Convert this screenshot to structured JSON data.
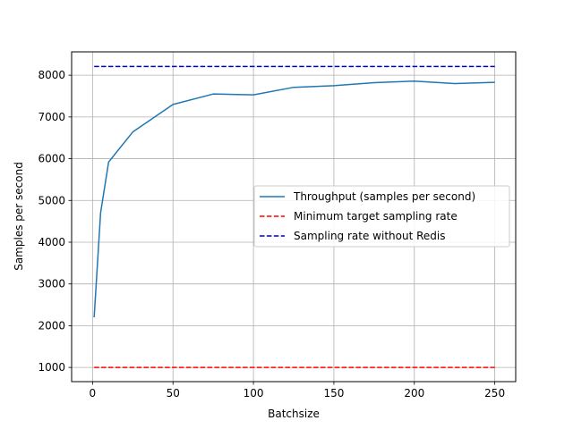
{
  "chart_data": {
    "type": "line",
    "title": "",
    "xlabel": "Batchsize",
    "ylabel": "Samples per second",
    "xlim": [
      -13,
      263
    ],
    "ylim": [
      660,
      8560
    ],
    "xticks": [
      0,
      50,
      100,
      150,
      200,
      250
    ],
    "yticks": [
      1000,
      2000,
      3000,
      4000,
      5000,
      6000,
      7000,
      8000
    ],
    "grid": true,
    "legend_position": "center-right",
    "series": [
      {
        "name": "Throughput (samples per second)",
        "style": "solid",
        "color": "#1f77b4",
        "x": [
          1,
          5,
          10,
          25,
          50,
          75,
          100,
          125,
          150,
          175,
          200,
          225,
          250
        ],
        "y": [
          2200,
          4700,
          5920,
          6640,
          7300,
          7550,
          7530,
          7710,
          7750,
          7820,
          7860,
          7800,
          7830
        ]
      },
      {
        "name": "Minimum target sampling rate",
        "style": "dashed",
        "color": "#ff0000",
        "x": [
          1,
          250
        ],
        "y": [
          1000,
          1000
        ]
      },
      {
        "name": "Sampling rate without Redis",
        "style": "dashed",
        "color": "#0000cc",
        "x": [
          1,
          250
        ],
        "y": [
          8210,
          8210
        ]
      }
    ]
  }
}
